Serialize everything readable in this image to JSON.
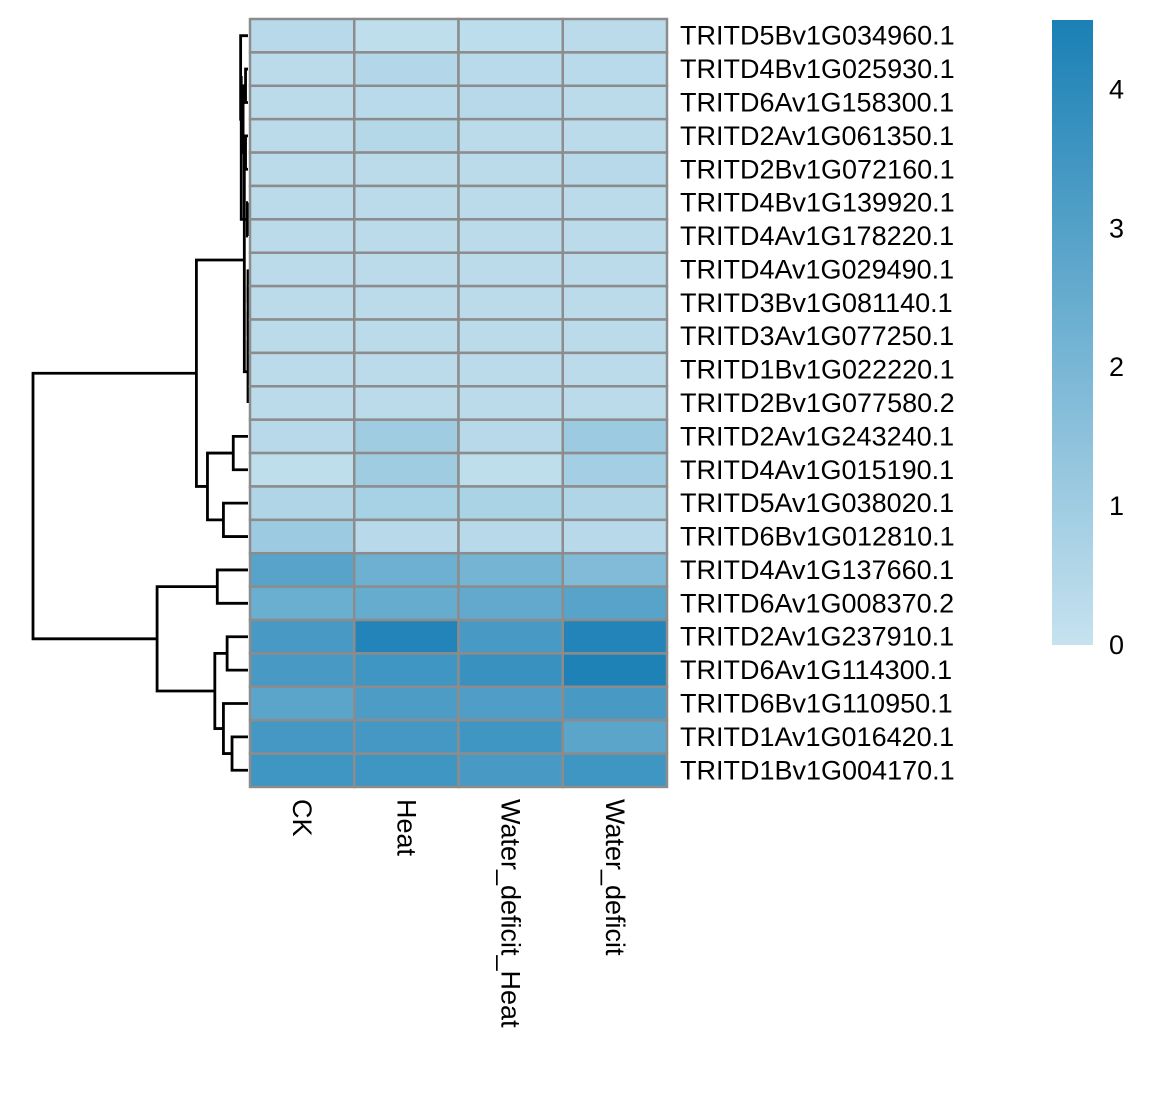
{
  "chart_data": {
    "type": "heatmap",
    "title": "",
    "columns": [
      "CK",
      "Heat",
      "Water_deficit_Heat",
      "Water_deficit"
    ],
    "rows": [
      "TRITD5Bv1G034960.1",
      "TRITD4Bv1G025930.1",
      "TRITD6Av1G158300.1",
      "TRITD2Av1G061350.1",
      "TRITD2Bv1G072160.1",
      "TRITD4Bv1G139920.1",
      "TRITD4Av1G178220.1",
      "TRITD4Av1G029490.1",
      "TRITD3Bv1G081140.1",
      "TRITD3Av1G077250.1",
      "TRITD1Bv1G022220.1",
      "TRITD2Bv1G077580.2",
      "TRITD2Av1G243240.1",
      "TRITD4Av1G015190.1",
      "TRITD5Av1G038020.1",
      "TRITD6Bv1G012810.1",
      "TRITD4Av1G137660.1",
      "TRITD6Av1G008370.2",
      "TRITD2Av1G237910.1",
      "TRITD6Av1G114300.1",
      "TRITD6Bv1G110950.1",
      "TRITD1Av1G016420.1",
      "TRITD1Bv1G004170.1"
    ],
    "values": [
      [
        0.4,
        0.2,
        0.25,
        0.3
      ],
      [
        0.3,
        0.5,
        0.35,
        0.35
      ],
      [
        0.3,
        0.35,
        0.4,
        0.3
      ],
      [
        0.3,
        0.45,
        0.3,
        0.3
      ],
      [
        0.3,
        0.3,
        0.3,
        0.4
      ],
      [
        0.3,
        0.3,
        0.3,
        0.3
      ],
      [
        0.3,
        0.3,
        0.3,
        0.3
      ],
      [
        0.3,
        0.3,
        0.3,
        0.3
      ],
      [
        0.3,
        0.3,
        0.3,
        0.3
      ],
      [
        0.3,
        0.3,
        0.3,
        0.3
      ],
      [
        0.3,
        0.3,
        0.3,
        0.3
      ],
      [
        0.3,
        0.3,
        0.3,
        0.3
      ],
      [
        0.4,
        1.0,
        0.4,
        1.1
      ],
      [
        0.2,
        1.0,
        0.2,
        0.9
      ],
      [
        0.6,
        0.8,
        0.7,
        0.6
      ],
      [
        1.1,
        0.4,
        0.4,
        0.4
      ],
      [
        2.9,
        2.3,
        2.1,
        1.8
      ],
      [
        2.4,
        2.5,
        2.6,
        2.9
      ],
      [
        3.3,
        4.3,
        3.3,
        4.3
      ],
      [
        3.3,
        3.5,
        3.7,
        4.4
      ],
      [
        2.8,
        3.2,
        3.1,
        3.3
      ],
      [
        3.4,
        3.4,
        3.5,
        2.8
      ],
      [
        3.5,
        3.5,
        3.3,
        3.5
      ]
    ],
    "color_scale": {
      "min": 0,
      "max": 4.5,
      "low_color": "#c6e2ef",
      "high_color": "#1a80b5"
    },
    "legend": {
      "position": "right",
      "ticks": [
        0,
        1,
        2,
        3,
        4
      ]
    },
    "cell_border_color": "#8c8c8c",
    "dendrogram_color": "#000000",
    "row_dendrogram": {
      "nodes": [
        {
          "id": "a1",
          "left": "r1",
          "right": "r2",
          "height": 0.02
        },
        {
          "id": "a2",
          "left": "r3",
          "right": "r4",
          "height": 0.02
        },
        {
          "id": "a3",
          "left": "a1",
          "right": "a2",
          "height": 0.04
        },
        {
          "id": "a4",
          "left": "r0",
          "right": "a3",
          "height": 0.06
        },
        {
          "id": "b1",
          "left": "r5",
          "right": "r6",
          "height": 0.005
        },
        {
          "id": "b2",
          "left": "a4",
          "right": "b1",
          "height": 0.055
        },
        {
          "id": "b3",
          "left": "r7",
          "right": "r8",
          "height": 0.0
        },
        {
          "id": "b4",
          "left": "b3",
          "right": "r9",
          "height": 0.0
        },
        {
          "id": "b5",
          "left": "b4",
          "right": "r10",
          "height": 0.0
        },
        {
          "id": "b6",
          "left": "b5",
          "right": "r11",
          "height": 0.0
        },
        {
          "id": "b7",
          "left": "b2",
          "right": "b6",
          "height": 0.03
        },
        {
          "id": "c1",
          "left": "r12",
          "right": "r13",
          "height": 0.12
        },
        {
          "id": "c2",
          "left": "r14",
          "right": "r15",
          "height": 0.2
        },
        {
          "id": "c3",
          "left": "c1",
          "right": "c2",
          "height": 0.33
        },
        {
          "id": "d1",
          "left": "b7",
          "right": "c3",
          "height": 0.42
        },
        {
          "id": "e1",
          "left": "r16",
          "right": "r17",
          "height": 0.25
        },
        {
          "id": "e2",
          "left": "r18",
          "right": "r19",
          "height": 0.17
        },
        {
          "id": "e3",
          "left": "r21",
          "right": "r22",
          "height": 0.13
        },
        {
          "id": "e4",
          "left": "r20",
          "right": "e3",
          "height": 0.2
        },
        {
          "id": "e5",
          "left": "e2",
          "right": "e4",
          "height": 0.27
        },
        {
          "id": "e6",
          "left": "e1",
          "right": "e5",
          "height": 0.74
        },
        {
          "id": "root",
          "left": "d1",
          "right": "e6",
          "height": 1.75
        }
      ]
    }
  }
}
